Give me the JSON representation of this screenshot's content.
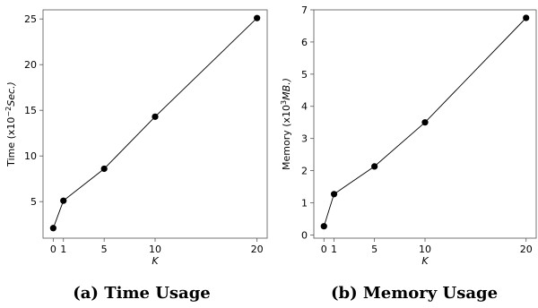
{
  "chart_data": [
    {
      "type": "line",
      "caption": "(a) Time Usage",
      "xlabel": "K",
      "ylabel_text": "Time ",
      "ylabel_unit_pre": "(x10",
      "ylabel_unit_exp": "−2",
      "ylabel_unit_post": "Sec.)",
      "x": [
        0,
        1,
        5,
        10,
        20
      ],
      "y": [
        2.1,
        5.1,
        8.6,
        14.3,
        25.1
      ],
      "xticks": [
        0,
        1,
        5,
        10,
        20
      ],
      "yticks": [
        5,
        10,
        15,
        20,
        25
      ],
      "xlim": [
        -1,
        21
      ],
      "ylim": [
        1.0,
        26.0
      ],
      "grid": false,
      "line_color": "#000000",
      "marker_color": "#000000"
    },
    {
      "type": "line",
      "caption": "(b) Memory Usage",
      "xlabel": "K",
      "ylabel_text": "Memory ",
      "ylabel_unit_pre": "(x10",
      "ylabel_unit_exp": "3",
      "ylabel_unit_post": "MB.)",
      "x": [
        0,
        1,
        5,
        10,
        20
      ],
      "y": [
        0.27,
        1.27,
        2.13,
        3.5,
        6.75
      ],
      "xticks": [
        0,
        1,
        5,
        10,
        20
      ],
      "yticks": [
        0,
        1,
        2,
        3,
        4,
        5,
        6,
        7
      ],
      "xlim": [
        -1,
        21
      ],
      "ylim": [
        -0.1,
        7.0
      ],
      "grid": false,
      "line_color": "#000000",
      "marker_color": "#000000"
    }
  ]
}
